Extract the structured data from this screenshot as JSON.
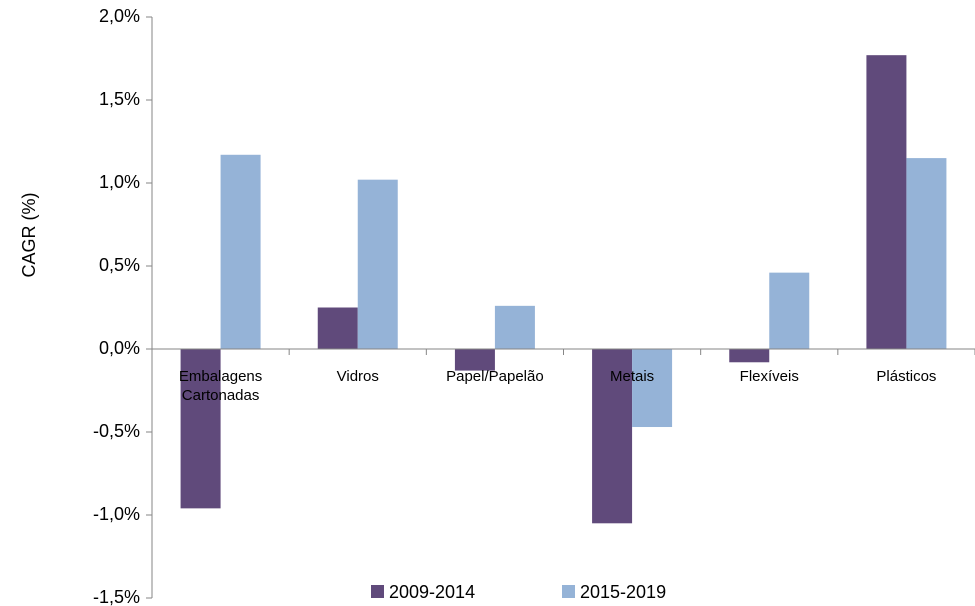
{
  "chart_data": {
    "type": "bar",
    "y_axis_label": "CAGR (%)",
    "categories": [
      "Embalagens Cartonadas",
      "Vidros",
      "Papel/Papelão",
      "Metais",
      "Flexíveis",
      "Plásticos"
    ],
    "series": [
      {
        "name": "2009-2014",
        "color": "#604a7b",
        "values": [
          -0.96,
          0.25,
          -0.13,
          -1.05,
          -0.08,
          1.77
        ]
      },
      {
        "name": "2015-2019",
        "color": "#95b3d7",
        "values": [
          1.17,
          1.02,
          0.26,
          -0.47,
          0.46,
          1.15
        ]
      }
    ],
    "ylim": [
      -1.5,
      2.0
    ],
    "yticks": [
      {
        "value": -1.5,
        "label": "-1,5%"
      },
      {
        "value": -1.0,
        "label": "-1,0%"
      },
      {
        "value": -0.5,
        "label": "-0,5%"
      },
      {
        "value": 0.0,
        "label": "0,0%"
      },
      {
        "value": 0.5,
        "label": "0,5%"
      },
      {
        "value": 1.0,
        "label": "1,0%"
      },
      {
        "value": 1.5,
        "label": "1,5%"
      },
      {
        "value": 2.0,
        "label": "2,0%"
      }
    ],
    "grid": false,
    "legend": "bottom"
  }
}
